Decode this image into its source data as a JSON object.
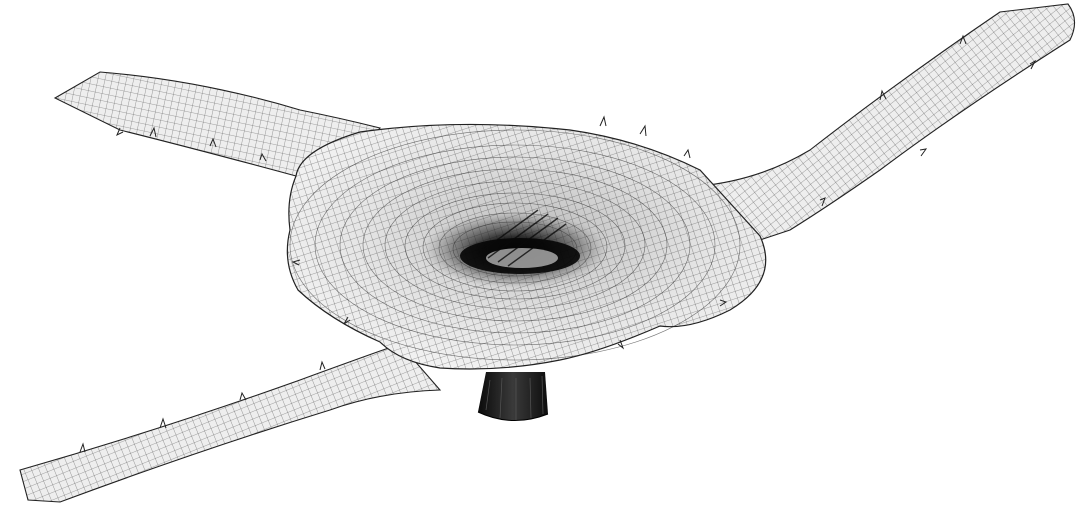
{
  "figure": {
    "style": "wireframe surface mesh",
    "background_color": "#ffffff",
    "surface_color": "#f2f2f2",
    "mesh_line_color": "#1a1a1a",
    "shadow_color": "#111111",
    "components": [
      "upper-left-arm",
      "lower-left-arm",
      "right-arm",
      "central-basin",
      "basin-depression",
      "support-post"
    ]
  }
}
